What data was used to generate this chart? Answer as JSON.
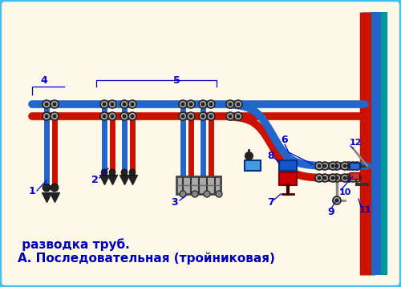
{
  "title_line1": "А. Последовательная (тройниковая)",
  "title_line2": " разводка труб.",
  "bg_color": "#fdf8e8",
  "border_color": "#4bbde8",
  "pipe_red": "#cc1100",
  "pipe_blue": "#2266cc",
  "wall_red": "#cc1100",
  "wall_blue": "#2266cc",
  "wall_teal": "#009999",
  "label_color": "#0000cc",
  "title_color": "#0000bb",
  "fitting_dark": "#222222",
  "fitting_gray": "#888888",
  "fitting_light": "#aaaaaa",
  "valve_red": "#cc0000",
  "valve_blue": "#1155cc"
}
